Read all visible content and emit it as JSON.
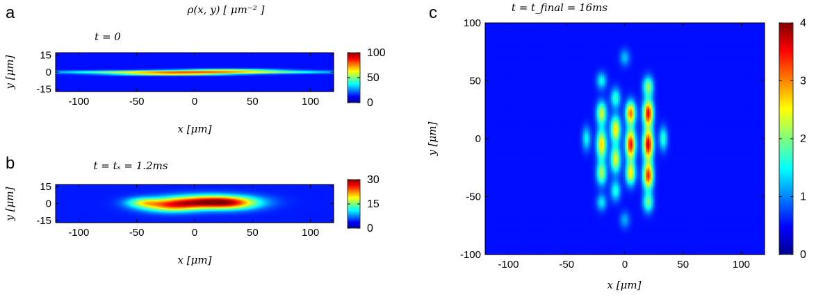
{
  "figure": {
    "density_label": "ρ(x, y) [ μm⁻² ]"
  },
  "chart_data": [
    {
      "type": "heatmap",
      "panel_letter": "a",
      "title": "t = 0",
      "xlabel": "x [μm]",
      "ylabel": "y [μm]",
      "xlim": [
        -120,
        120
      ],
      "ylim": [
        -17,
        17
      ],
      "xticks": [
        -100,
        -50,
        0,
        50,
        100
      ],
      "yticks": [
        -15,
        0,
        15
      ],
      "colorbar": {
        "range": [
          0,
          100
        ],
        "ticks": [
          0,
          50,
          100
        ]
      },
      "colormap": [
        "#00008f",
        "#0000ff",
        "#00ffff",
        "#7fff7f",
        "#ffff00",
        "#ff0000",
        "#7f0000"
      ],
      "features": [
        {
          "x": 0,
          "y": 0,
          "sx": 70,
          "sy": 0.9,
          "value": 80
        },
        {
          "x": -20,
          "y": -2,
          "sx": 35,
          "sy": 0.7,
          "value": 55
        },
        {
          "x": 30,
          "y": 2,
          "sx": 30,
          "sy": 0.7,
          "value": 40
        }
      ],
      "background_value": 2
    },
    {
      "type": "heatmap",
      "panel_letter": "b",
      "title": "t = tₛ = 1.2ms",
      "xlabel": "x [μm]",
      "ylabel": "y [μm]",
      "xlim": [
        -120,
        120
      ],
      "ylim": [
        -17,
        17
      ],
      "xticks": [
        -100,
        -50,
        0,
        50,
        100
      ],
      "yticks": [
        -15,
        0,
        15
      ],
      "colorbar": {
        "range": [
          0,
          30
        ],
        "ticks": [
          0,
          15,
          30
        ]
      },
      "colormap": [
        "#00008f",
        "#0000ff",
        "#00ffff",
        "#7fff7f",
        "#ffff00",
        "#ff0000",
        "#7f0000"
      ],
      "features": [
        {
          "x": -20,
          "y": -2,
          "sx": 18,
          "sy": 4,
          "value": 18
        },
        {
          "x": 10,
          "y": 2,
          "sx": 25,
          "sy": 4,
          "value": 20
        },
        {
          "x": 30,
          "y": 0,
          "sx": 18,
          "sy": 4,
          "value": 15
        },
        {
          "x": -45,
          "y": 1,
          "sx": 10,
          "sy": 3,
          "value": 10
        }
      ],
      "background_value": 1
    },
    {
      "type": "heatmap",
      "panel_letter": "c",
      "title": "t = t_final = 16ms",
      "xlabel": "x [μm]",
      "ylabel": "y [μm]",
      "xlim": [
        -120,
        120
      ],
      "ylim": [
        -100,
        100
      ],
      "xticks": [
        -100,
        -50,
        0,
        50,
        100
      ],
      "yticks": [
        -100,
        -50,
        0,
        50,
        100
      ],
      "colorbar": {
        "range": [
          0,
          4
        ],
        "ticks": [
          0,
          1,
          2,
          3,
          4
        ]
      },
      "colormap": [
        "#00008f",
        "#0000ff",
        "#00ffff",
        "#7fff7f",
        "#ffff00",
        "#ff0000",
        "#7f0000"
      ],
      "features": [
        {
          "x": -20,
          "y": -5,
          "sx": 3,
          "sy": 9,
          "value": 2.4
        },
        {
          "x": -20,
          "y": 22,
          "sx": 3,
          "sy": 7,
          "value": 2.0
        },
        {
          "x": -20,
          "y": -30,
          "sx": 3,
          "sy": 7,
          "value": 1.8
        },
        {
          "x": -8,
          "y": 8,
          "sx": 3,
          "sy": 8,
          "value": 2.3
        },
        {
          "x": -8,
          "y": -18,
          "sx": 3,
          "sy": 8,
          "value": 2.1
        },
        {
          "x": -8,
          "y": 35,
          "sx": 3,
          "sy": 6,
          "value": 1.3
        },
        {
          "x": -8,
          "y": -45,
          "sx": 3,
          "sy": 6,
          "value": 1.2
        },
        {
          "x": 5,
          "y": -5,
          "sx": 3,
          "sy": 9,
          "value": 3.3
        },
        {
          "x": 5,
          "y": 22,
          "sx": 3,
          "sy": 7,
          "value": 2.8
        },
        {
          "x": 5,
          "y": -30,
          "sx": 3,
          "sy": 7,
          "value": 2.2
        },
        {
          "x": 20,
          "y": 22,
          "sx": 3,
          "sy": 8,
          "value": 3.4
        },
        {
          "x": 20,
          "y": -5,
          "sx": 3,
          "sy": 9,
          "value": 3.6
        },
        {
          "x": 20,
          "y": -32,
          "sx": 3,
          "sy": 8,
          "value": 3.2
        },
        {
          "x": 20,
          "y": 45,
          "sx": 3,
          "sy": 6,
          "value": 1.8
        },
        {
          "x": 20,
          "y": -55,
          "sx": 3,
          "sy": 6,
          "value": 1.6
        },
        {
          "x": -20,
          "y": 50,
          "sx": 3,
          "sy": 5,
          "value": 1.1
        },
        {
          "x": -20,
          "y": -55,
          "sx": 3,
          "sy": 5,
          "value": 1.0
        },
        {
          "x": 33,
          "y": 0,
          "sx": 2.5,
          "sy": 7,
          "value": 1.3
        },
        {
          "x": -33,
          "y": 0,
          "sx": 2.5,
          "sy": 7,
          "value": 1.1
        },
        {
          "x": 0,
          "y": 70,
          "sx": 3,
          "sy": 5,
          "value": 0.8
        },
        {
          "x": 0,
          "y": -70,
          "sx": 3,
          "sy": 5,
          "value": 0.7
        }
      ],
      "background_value": 0.08
    }
  ]
}
